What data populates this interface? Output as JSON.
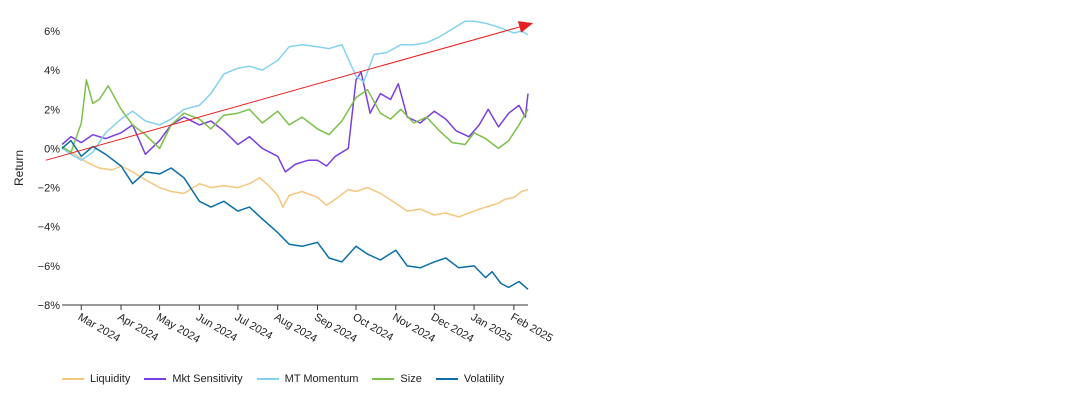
{
  "chart_data": {
    "type": "line",
    "ylabel": "Return",
    "y_axis": {
      "min": -8,
      "max": 6,
      "ticks": [
        -8,
        -6,
        -4,
        -2,
        0,
        2,
        4,
        6
      ],
      "tick_labels": [
        "−8%",
        "−6%",
        "−4%",
        "−2%",
        "0%",
        "2%",
        "4%",
        "6%"
      ]
    },
    "x_axis": {
      "start": "2024-02-15",
      "end": "2025-02-12",
      "ticks": [
        "2024-03-01",
        "2024-04-01",
        "2024-05-01",
        "2024-06-01",
        "2024-07-01",
        "2024-08-01",
        "2024-09-01",
        "2024-10-01",
        "2024-11-01",
        "2024-12-01",
        "2025-01-01",
        "2025-02-01"
      ],
      "tick_labels": [
        "Mar 2024",
        "Apr 2024",
        "May 2024",
        "Jun 2024",
        "Jul 2024",
        "Aug 2024",
        "Sep 2024",
        "Oct 2024",
        "Nov 2024",
        "Dec 2024",
        "Jan 2025",
        "Feb 2025"
      ]
    },
    "grid": false,
    "legend_position": "bottom",
    "series": [
      {
        "name": "Liquidity",
        "color": "#f5c77e",
        "points": [
          [
            "2024-02-15",
            0.0
          ],
          [
            "2024-02-25",
            -0.3
          ],
          [
            "2024-03-05",
            -0.7
          ],
          [
            "2024-03-15",
            -1.0
          ],
          [
            "2024-03-25",
            -1.1
          ],
          [
            "2024-04-01",
            -0.9
          ],
          [
            "2024-04-10",
            -1.2
          ],
          [
            "2024-04-20",
            -1.6
          ],
          [
            "2024-05-01",
            -2.0
          ],
          [
            "2024-05-10",
            -2.2
          ],
          [
            "2024-05-20",
            -2.3
          ],
          [
            "2024-06-01",
            -1.8
          ],
          [
            "2024-06-10",
            -2.0
          ],
          [
            "2024-06-20",
            -1.9
          ],
          [
            "2024-07-01",
            -2.0
          ],
          [
            "2024-07-10",
            -1.8
          ],
          [
            "2024-07-18",
            -1.5
          ],
          [
            "2024-07-25",
            -1.9
          ],
          [
            "2024-08-01",
            -2.4
          ],
          [
            "2024-08-05",
            -3.0
          ],
          [
            "2024-08-10",
            -2.4
          ],
          [
            "2024-08-20",
            -2.2
          ],
          [
            "2024-09-01",
            -2.5
          ],
          [
            "2024-09-08",
            -2.9
          ],
          [
            "2024-09-15",
            -2.6
          ],
          [
            "2024-09-25",
            -2.1
          ],
          [
            "2024-10-01",
            -2.2
          ],
          [
            "2024-10-10",
            -2.0
          ],
          [
            "2024-10-20",
            -2.3
          ],
          [
            "2024-11-01",
            -2.8
          ],
          [
            "2024-11-10",
            -3.2
          ],
          [
            "2024-11-20",
            -3.1
          ],
          [
            "2024-12-01",
            -3.4
          ],
          [
            "2024-12-10",
            -3.3
          ],
          [
            "2024-12-20",
            -3.5
          ],
          [
            "2025-01-01",
            -3.2
          ],
          [
            "2025-01-10",
            -3.0
          ],
          [
            "2025-01-20",
            -2.8
          ],
          [
            "2025-01-25",
            -2.6
          ],
          [
            "2025-02-01",
            -2.5
          ],
          [
            "2025-02-07",
            -2.2
          ],
          [
            "2025-02-12",
            -2.1
          ]
        ]
      },
      {
        "name": "Mkt Sensitivity",
        "color": "#7a3fe0",
        "points": [
          [
            "2024-02-15",
            0.2
          ],
          [
            "2024-02-22",
            0.6
          ],
          [
            "2024-03-01",
            0.3
          ],
          [
            "2024-03-10",
            0.7
          ],
          [
            "2024-03-20",
            0.5
          ],
          [
            "2024-04-01",
            0.8
          ],
          [
            "2024-04-10",
            1.2
          ],
          [
            "2024-04-20",
            -0.3
          ],
          [
            "2024-05-01",
            0.4
          ],
          [
            "2024-05-10",
            1.2
          ],
          [
            "2024-05-20",
            1.6
          ],
          [
            "2024-06-01",
            1.2
          ],
          [
            "2024-06-10",
            1.4
          ],
          [
            "2024-06-20",
            0.9
          ],
          [
            "2024-07-01",
            0.2
          ],
          [
            "2024-07-10",
            0.6
          ],
          [
            "2024-07-20",
            0.0
          ],
          [
            "2024-08-01",
            -0.4
          ],
          [
            "2024-08-07",
            -1.2
          ],
          [
            "2024-08-15",
            -0.8
          ],
          [
            "2024-08-25",
            -0.6
          ],
          [
            "2024-09-01",
            -0.6
          ],
          [
            "2024-09-08",
            -0.9
          ],
          [
            "2024-09-15",
            -0.4
          ],
          [
            "2024-09-25",
            0.0
          ],
          [
            "2024-10-01",
            3.5
          ],
          [
            "2024-10-05",
            3.9
          ],
          [
            "2024-10-12",
            1.8
          ],
          [
            "2024-10-20",
            2.8
          ],
          [
            "2024-10-28",
            2.5
          ],
          [
            "2024-11-03",
            3.3
          ],
          [
            "2024-11-10",
            1.6
          ],
          [
            "2024-11-20",
            1.3
          ],
          [
            "2024-12-01",
            1.9
          ],
          [
            "2024-12-10",
            1.5
          ],
          [
            "2024-12-18",
            0.9
          ],
          [
            "2024-12-28",
            0.6
          ],
          [
            "2025-01-05",
            1.2
          ],
          [
            "2025-01-12",
            2.0
          ],
          [
            "2025-01-20",
            1.1
          ],
          [
            "2025-01-28",
            1.8
          ],
          [
            "2025-02-05",
            2.2
          ],
          [
            "2025-02-10",
            1.6
          ],
          [
            "2025-02-12",
            2.8
          ]
        ]
      },
      {
        "name": "MT Momentum",
        "color": "#84d2f0",
        "points": [
          [
            "2024-02-15",
            0.0
          ],
          [
            "2024-02-22",
            -0.3
          ],
          [
            "2024-03-01",
            -0.6
          ],
          [
            "2024-03-10",
            -0.2
          ],
          [
            "2024-03-20",
            0.8
          ],
          [
            "2024-04-01",
            1.5
          ],
          [
            "2024-04-10",
            1.9
          ],
          [
            "2024-04-20",
            1.4
          ],
          [
            "2024-05-01",
            1.2
          ],
          [
            "2024-05-10",
            1.5
          ],
          [
            "2024-05-20",
            2.0
          ],
          [
            "2024-06-01",
            2.2
          ],
          [
            "2024-06-10",
            2.8
          ],
          [
            "2024-06-20",
            3.8
          ],
          [
            "2024-07-01",
            4.1
          ],
          [
            "2024-07-10",
            4.2
          ],
          [
            "2024-07-20",
            4.0
          ],
          [
            "2024-08-01",
            4.5
          ],
          [
            "2024-08-10",
            5.2
          ],
          [
            "2024-08-20",
            5.3
          ],
          [
            "2024-09-01",
            5.2
          ],
          [
            "2024-09-10",
            5.1
          ],
          [
            "2024-09-20",
            5.3
          ],
          [
            "2024-10-01",
            3.7
          ],
          [
            "2024-10-07",
            3.4
          ],
          [
            "2024-10-15",
            4.8
          ],
          [
            "2024-10-25",
            4.9
          ],
          [
            "2024-11-05",
            5.3
          ],
          [
            "2024-11-15",
            5.3
          ],
          [
            "2024-11-25",
            5.4
          ],
          [
            "2024-12-05",
            5.7
          ],
          [
            "2024-12-15",
            6.1
          ],
          [
            "2024-12-25",
            6.5
          ],
          [
            "2025-01-01",
            6.5
          ],
          [
            "2025-01-10",
            6.4
          ],
          [
            "2025-01-20",
            6.2
          ],
          [
            "2025-02-01",
            5.9
          ],
          [
            "2025-02-07",
            6.0
          ],
          [
            "2025-02-12",
            5.8
          ]
        ]
      },
      {
        "name": "Size",
        "color": "#7cc04a",
        "points": [
          [
            "2024-02-15",
            0.1
          ],
          [
            "2024-02-22",
            -0.2
          ],
          [
            "2024-03-01",
            1.3
          ],
          [
            "2024-03-05",
            3.5
          ],
          [
            "2024-03-10",
            2.3
          ],
          [
            "2024-03-15",
            2.5
          ],
          [
            "2024-03-22",
            3.2
          ],
          [
            "2024-04-01",
            2.0
          ],
          [
            "2024-04-10",
            1.2
          ],
          [
            "2024-04-20",
            0.7
          ],
          [
            "2024-05-01",
            0.0
          ],
          [
            "2024-05-10",
            1.2
          ],
          [
            "2024-05-20",
            1.8
          ],
          [
            "2024-06-01",
            1.5
          ],
          [
            "2024-06-10",
            1.0
          ],
          [
            "2024-06-20",
            1.7
          ],
          [
            "2024-07-01",
            1.8
          ],
          [
            "2024-07-10",
            2.0
          ],
          [
            "2024-07-20",
            1.3
          ],
          [
            "2024-08-01",
            1.9
          ],
          [
            "2024-08-10",
            1.2
          ],
          [
            "2024-08-20",
            1.6
          ],
          [
            "2024-09-01",
            1.0
          ],
          [
            "2024-09-10",
            0.7
          ],
          [
            "2024-09-20",
            1.4
          ],
          [
            "2024-10-01",
            2.6
          ],
          [
            "2024-10-10",
            3.0
          ],
          [
            "2024-10-20",
            1.8
          ],
          [
            "2024-10-28",
            1.5
          ],
          [
            "2024-11-05",
            2.0
          ],
          [
            "2024-11-15",
            1.3
          ],
          [
            "2024-11-25",
            1.6
          ],
          [
            "2024-12-05",
            0.9
          ],
          [
            "2024-12-15",
            0.3
          ],
          [
            "2024-12-25",
            0.2
          ],
          [
            "2025-01-01",
            0.8
          ],
          [
            "2025-01-10",
            0.5
          ],
          [
            "2025-01-20",
            0.0
          ],
          [
            "2025-01-28",
            0.4
          ],
          [
            "2025-02-05",
            1.2
          ],
          [
            "2025-02-12",
            2.0
          ]
        ]
      },
      {
        "name": "Volatility",
        "color": "#0a6ea8",
        "points": [
          [
            "2024-02-15",
            0.0
          ],
          [
            "2024-02-22",
            0.4
          ],
          [
            "2024-03-01",
            -0.4
          ],
          [
            "2024-03-10",
            0.1
          ],
          [
            "2024-03-20",
            -0.3
          ],
          [
            "2024-04-01",
            -0.9
          ],
          [
            "2024-04-10",
            -1.8
          ],
          [
            "2024-04-20",
            -1.2
          ],
          [
            "2024-05-01",
            -1.3
          ],
          [
            "2024-05-10",
            -1.0
          ],
          [
            "2024-05-20",
            -1.5
          ],
          [
            "2024-06-01",
            -2.7
          ],
          [
            "2024-06-10",
            -3.0
          ],
          [
            "2024-06-20",
            -2.7
          ],
          [
            "2024-07-01",
            -3.2
          ],
          [
            "2024-07-10",
            -3.0
          ],
          [
            "2024-07-20",
            -3.6
          ],
          [
            "2024-08-01",
            -4.3
          ],
          [
            "2024-08-10",
            -4.9
          ],
          [
            "2024-08-20",
            -5.0
          ],
          [
            "2024-09-01",
            -4.8
          ],
          [
            "2024-09-10",
            -5.6
          ],
          [
            "2024-09-20",
            -5.8
          ],
          [
            "2024-10-01",
            -5.0
          ],
          [
            "2024-10-10",
            -5.4
          ],
          [
            "2024-10-20",
            -5.7
          ],
          [
            "2024-11-01",
            -5.2
          ],
          [
            "2024-11-10",
            -6.0
          ],
          [
            "2024-11-20",
            -6.1
          ],
          [
            "2024-12-01",
            -5.8
          ],
          [
            "2024-12-10",
            -5.6
          ],
          [
            "2024-12-20",
            -6.1
          ],
          [
            "2025-01-01",
            -6.0
          ],
          [
            "2025-01-10",
            -6.6
          ],
          [
            "2025-01-15",
            -6.3
          ],
          [
            "2025-01-22",
            -6.9
          ],
          [
            "2025-01-28",
            -7.1
          ],
          [
            "2025-02-05",
            -6.8
          ],
          [
            "2025-02-12",
            -7.2
          ]
        ]
      }
    ],
    "annotations": [
      {
        "type": "trend-arrow",
        "color": "#e81e1e",
        "from": [
          "2024-02-15",
          -0.6
        ],
        "to": [
          "2025-02-12",
          6.4
        ]
      }
    ]
  },
  "legend": {
    "items": [
      {
        "label": "Liquidity",
        "color": "#f5c77e"
      },
      {
        "label": "Mkt Sensitivity",
        "color": "#7a3fe0"
      },
      {
        "label": "MT Momentum",
        "color": "#84d2f0"
      },
      {
        "label": "Size",
        "color": "#7cc04a"
      },
      {
        "label": "Volatility",
        "color": "#0a6ea8"
      }
    ]
  }
}
